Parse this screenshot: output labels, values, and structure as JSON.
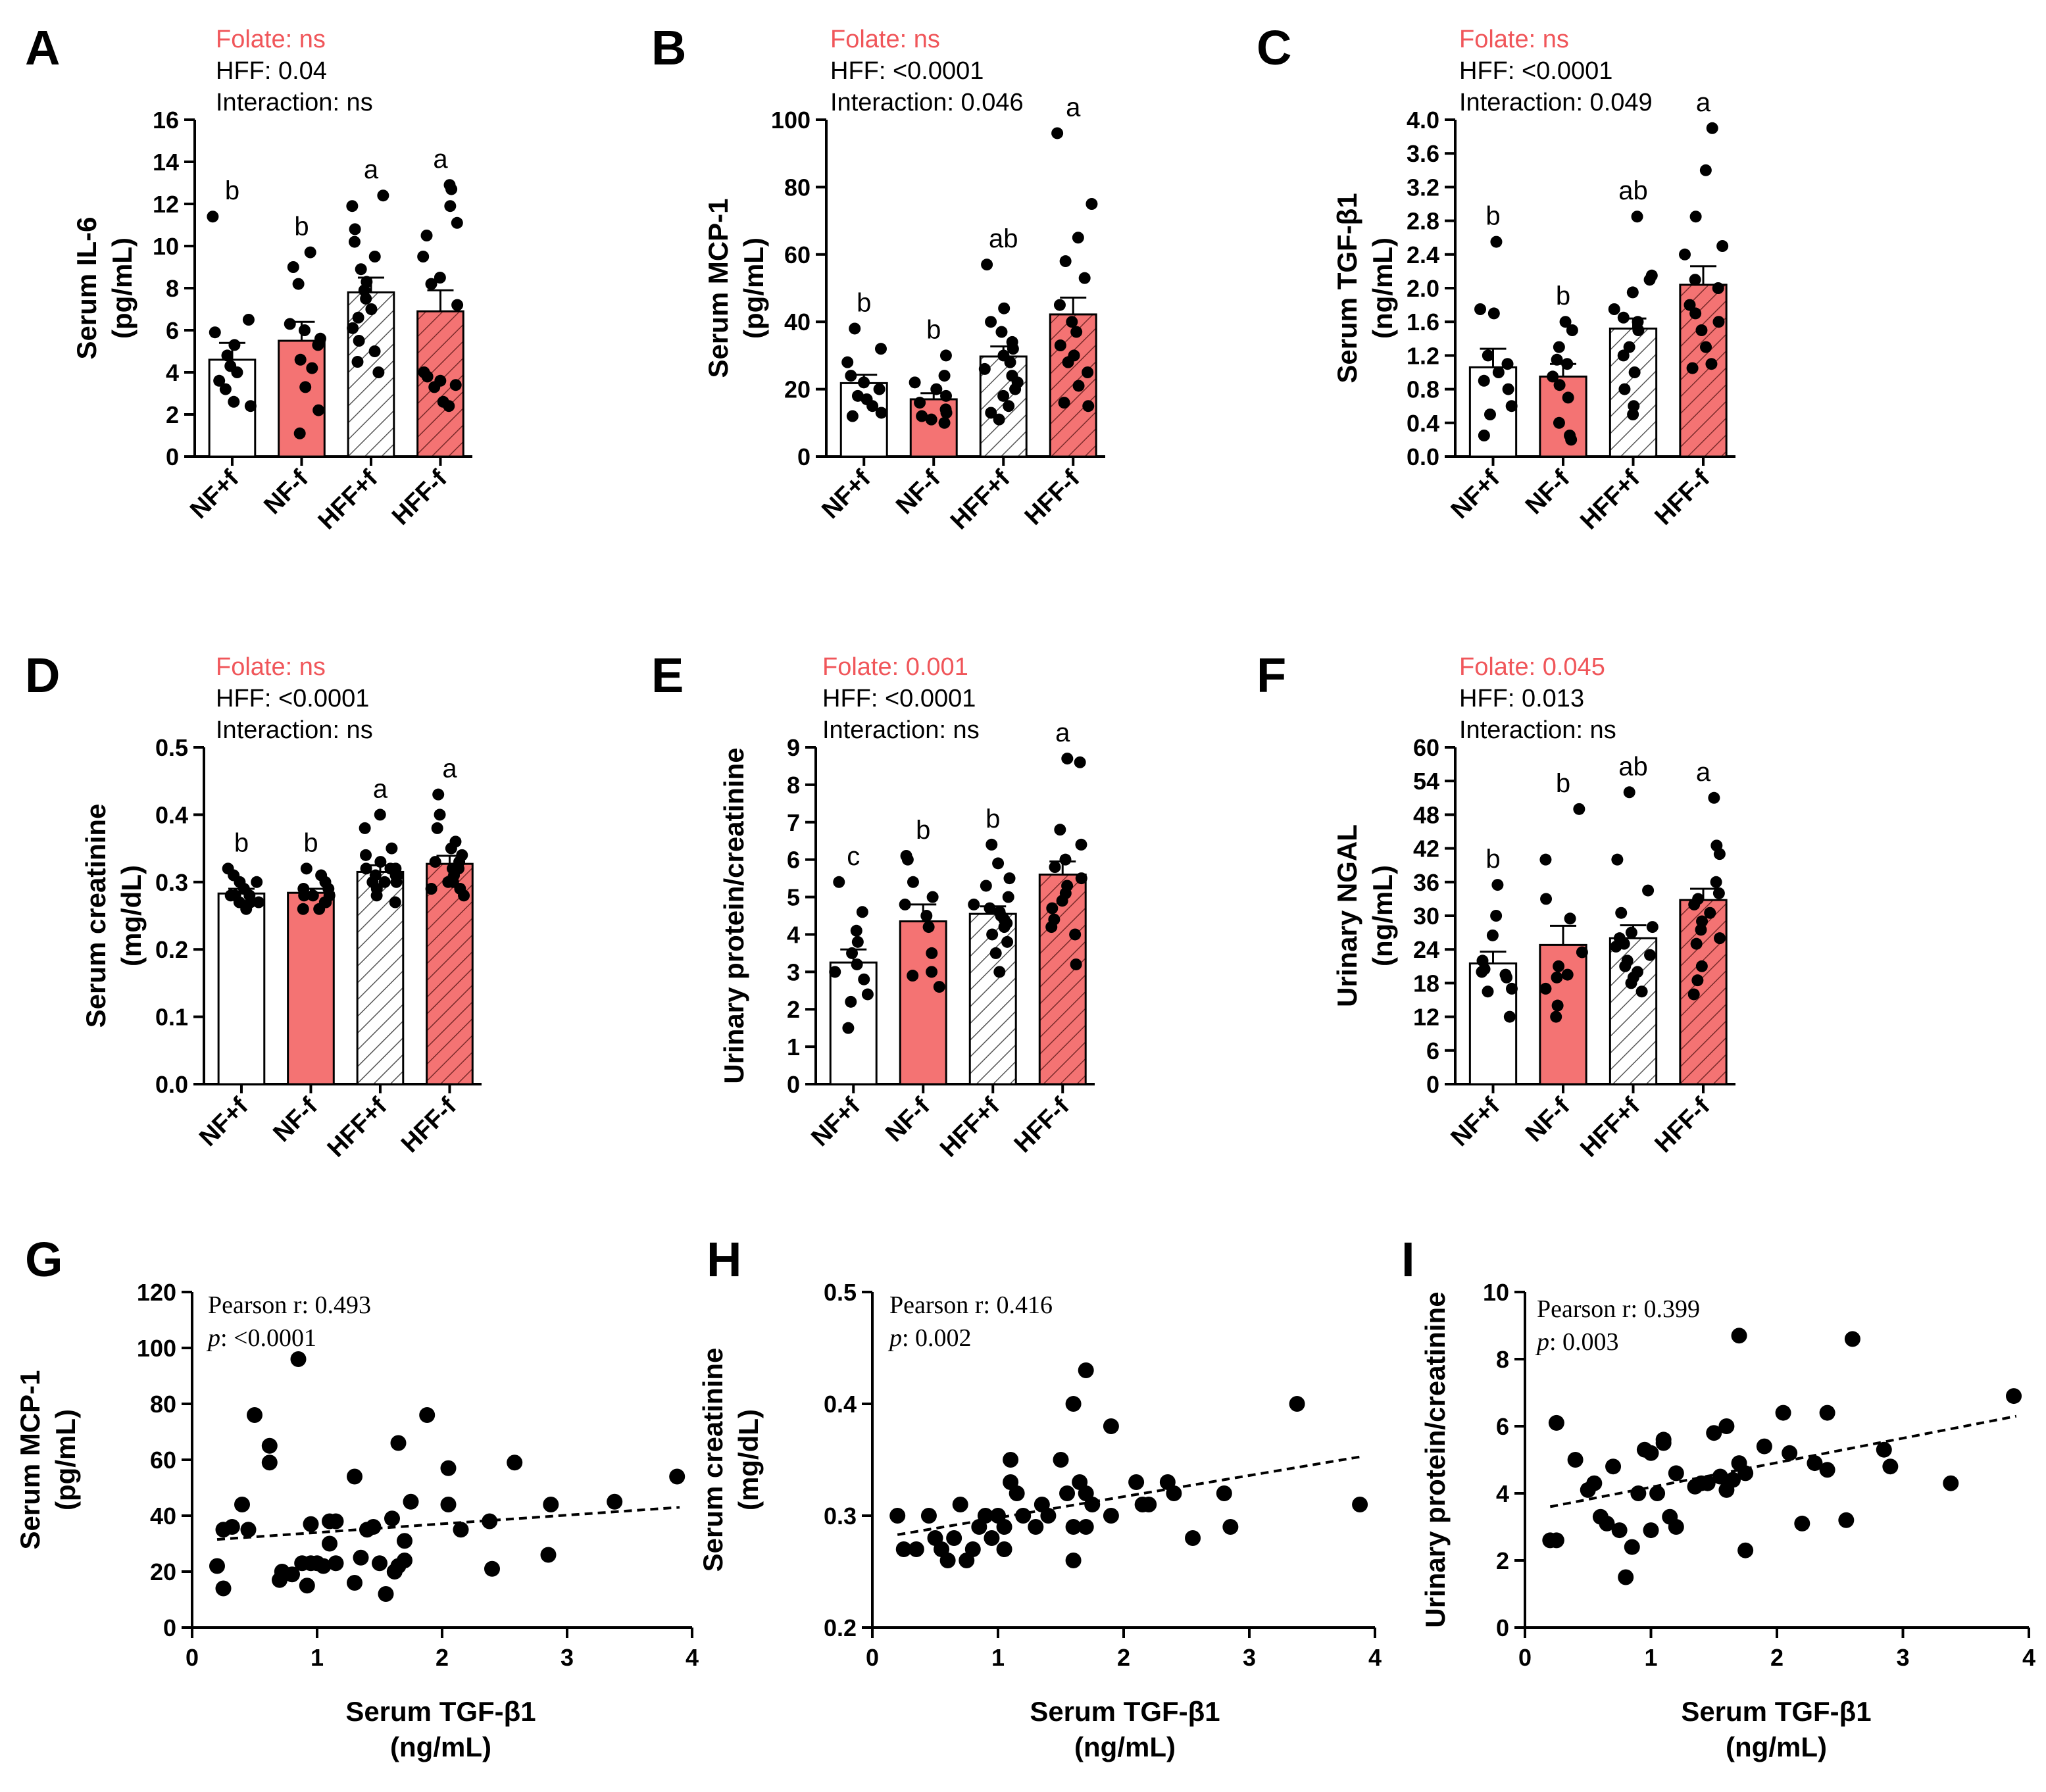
{
  "colors": {
    "red": "#f47373",
    "red_text": "#f0565a",
    "white": "#ffffff",
    "hatch_white": "#ffffff",
    "hatch_red": "#f47373",
    "black": "#000000"
  },
  "chart_data": [
    {
      "id": "A",
      "letter": "A",
      "type": "bar",
      "categories": [
        "NF+f",
        "NF-f",
        "HFF+f",
        "HFF-f"
      ],
      "values": [
        4.6,
        5.5,
        7.8,
        6.9
      ],
      "sem": [
        0.8,
        0.9,
        0.7,
        1.0
      ],
      "sig": [
        "b",
        "b",
        "a",
        "a"
      ],
      "ylabel": [
        "Serum IL-6",
        "(pg/mL)"
      ],
      "ylim": [
        0,
        16
      ],
      "yticks": [
        "0",
        "2",
        "4",
        "6",
        "8",
        "10",
        "12",
        "14",
        "16"
      ],
      "stats": {
        "folate": "Folate: ns",
        "hff": "HFF: 0.04",
        "interaction": "Interaction: ns"
      },
      "points": [
        [
          11.4,
          6.5,
          5.9,
          5.3,
          4.8,
          4.3,
          4.0,
          3.6,
          3.2,
          2.6,
          2.4
        ],
        [
          9.7,
          9.0,
          8.2,
          6.3,
          6.0,
          5.6,
          5.3,
          4.6,
          4.2,
          3.3,
          2.2,
          1.1
        ],
        [
          12.4,
          11.9,
          10.8,
          10.2,
          9.5,
          8.9,
          8.3,
          7.9,
          7.5,
          7.0,
          6.6,
          6.1,
          5.5,
          5.0,
          4.5,
          4.0
        ],
        [
          12.9,
          12.7,
          11.9,
          11.1,
          10.5,
          9.5,
          8.5,
          8.2,
          7.2,
          4.0,
          3.8,
          3.6,
          3.4,
          3.3,
          2.6,
          2.4
        ]
      ]
    },
    {
      "id": "B",
      "letter": "B",
      "type": "bar",
      "categories": [
        "NF+f",
        "NF-f",
        "HFF+f",
        "HFF-f"
      ],
      "values": [
        21.8,
        17.0,
        29.7,
        42.2
      ],
      "sem": [
        2.5,
        1.8,
        3.0,
        5.0
      ],
      "sig": [
        "b",
        "b",
        "ab",
        "a"
      ],
      "ylabel": [
        "Serum MCP-1",
        "(pg/mL)"
      ],
      "ylim": [
        0,
        100
      ],
      "yticks": [
        "0",
        "20",
        "40",
        "60",
        "80",
        "100"
      ],
      "stats": {
        "folate": "Folate: ns",
        "hff": "HFF: <0.0001",
        "interaction": "Interaction: 0.046"
      },
      "points": [
        [
          38,
          32,
          28,
          24,
          22,
          20,
          18,
          17,
          15,
          13,
          12
        ],
        [
          30,
          24,
          22,
          20,
          18,
          16,
          14,
          13,
          12,
          11,
          10
        ],
        [
          57,
          44,
          40,
          37,
          34,
          32,
          30,
          28,
          26,
          24,
          22,
          20,
          18,
          15,
          13,
          11
        ],
        [
          96,
          75,
          65,
          58,
          53,
          45,
          40,
          37,
          33,
          30,
          28,
          25,
          21,
          16,
          15
        ]
      ]
    },
    {
      "id": "C",
      "letter": "C",
      "type": "bar",
      "categories": [
        "NF+f",
        "NF-f",
        "HFF+f",
        "HFF-f"
      ],
      "values": [
        1.06,
        0.95,
        1.52,
        2.04
      ],
      "sem": [
        0.22,
        0.15,
        0.12,
        0.22
      ],
      "sig": [
        "b",
        "b",
        "ab",
        "a"
      ],
      "ylabel": [
        "Serum TGF-β1",
        "(ng/mL)"
      ],
      "ylim": [
        0,
        4
      ],
      "yticks": [
        "0.0",
        "0.4",
        "0.8",
        "1.2",
        "1.6",
        "2.0",
        "2.4",
        "2.8",
        "3.2",
        "3.6",
        "4.0"
      ],
      "stats": {
        "folate": "Folate: ns",
        "hff": "HFF: <0.0001",
        "interaction": "Interaction: 0.049"
      },
      "points": [
        [
          2.55,
          1.75,
          1.7,
          1.2,
          1.1,
          1.0,
          0.9,
          0.8,
          0.6,
          0.5,
          0.25
        ],
        [
          1.6,
          1.5,
          1.3,
          1.15,
          1.1,
          0.95,
          0.85,
          0.7,
          0.4,
          0.25,
          0.2
        ],
        [
          2.85,
          2.15,
          2.1,
          1.95,
          1.75,
          1.65,
          1.6,
          1.5,
          1.3,
          1.2,
          1.0,
          0.8,
          0.6,
          0.5
        ],
        [
          3.9,
          3.4,
          2.85,
          2.5,
          2.4,
          2.1,
          2.0,
          1.8,
          1.7,
          1.6,
          1.5,
          1.3,
          1.1,
          1.05
        ]
      ]
    },
    {
      "id": "D",
      "letter": "D",
      "type": "bar",
      "categories": [
        "NF+f",
        "NF-f",
        "HFF+f",
        "HFF-f"
      ],
      "values": [
        0.283,
        0.284,
        0.315,
        0.327
      ],
      "sem": [
        0.007,
        0.006,
        0.01,
        0.012
      ],
      "sig": [
        "b",
        "b",
        "a",
        "a"
      ],
      "ylabel": [
        "Serum creatinine",
        "(mg/dL)"
      ],
      "ylim": [
        0,
        0.5
      ],
      "yticks": [
        "0.0",
        "0.1",
        "0.2",
        "0.3",
        "0.4",
        "0.5"
      ],
      "stats": {
        "folate": "Folate: ns",
        "hff": "HFF: <0.0001",
        "interaction": "Interaction: ns"
      },
      "points": [
        [
          0.32,
          0.31,
          0.3,
          0.3,
          0.29,
          0.28,
          0.28,
          0.28,
          0.27,
          0.27,
          0.27,
          0.26
        ],
        [
          0.32,
          0.31,
          0.3,
          0.29,
          0.29,
          0.28,
          0.28,
          0.28,
          0.27,
          0.27,
          0.26,
          0.26
        ],
        [
          0.4,
          0.38,
          0.35,
          0.34,
          0.33,
          0.32,
          0.32,
          0.32,
          0.31,
          0.31,
          0.31,
          0.3,
          0.3,
          0.3,
          0.29,
          0.28,
          0.27
        ],
        [
          0.43,
          0.4,
          0.38,
          0.36,
          0.35,
          0.34,
          0.33,
          0.33,
          0.32,
          0.32,
          0.31,
          0.3,
          0.3,
          0.29,
          0.29,
          0.28
        ]
      ]
    },
    {
      "id": "E",
      "letter": "E",
      "type": "bar",
      "categories": [
        "NF+f",
        "NF-f",
        "HFF+f",
        "HFF-f"
      ],
      "values": [
        3.25,
        4.35,
        4.55,
        5.6
      ],
      "sem": [
        0.35,
        0.45,
        0.2,
        0.35
      ],
      "sig": [
        "c",
        "b",
        "b",
        "a"
      ],
      "ylabel": [
        "Urinary protein/creatinine"
      ],
      "ylim": [
        0,
        9
      ],
      "yticks": [
        "0",
        "1",
        "2",
        "3",
        "4",
        "5",
        "6",
        "7",
        "8",
        "9"
      ],
      "stats": {
        "folate": "Folate: 0.001",
        "hff": "HFF: <0.0001",
        "interaction": "Interaction: ns"
      },
      "points": [
        [
          5.4,
          4.6,
          4.1,
          3.8,
          3.5,
          3.2,
          3.0,
          2.8,
          2.4,
          2.2,
          1.5
        ],
        [
          6.1,
          6.0,
          5.4,
          5.0,
          4.8,
          4.5,
          4.2,
          3.5,
          3.0,
          2.9,
          2.6
        ],
        [
          6.4,
          5.9,
          5.5,
          5.3,
          5.0,
          4.8,
          4.7,
          4.6,
          4.5,
          4.4,
          4.3,
          4.2,
          4.0,
          3.8,
          3.5,
          3.0
        ],
        [
          8.7,
          8.6,
          6.8,
          6.4,
          6.0,
          5.8,
          5.5,
          5.3,
          5.1,
          4.9,
          4.7,
          4.4,
          4.2,
          4.0,
          3.2
        ]
      ]
    },
    {
      "id": "F",
      "letter": "F",
      "type": "bar",
      "categories": [
        "NF+f",
        "NF-f",
        "HFF+f",
        "HFF-f"
      ],
      "values": [
        21.5,
        24.8,
        26.0,
        32.8
      ],
      "sem": [
        2.1,
        3.4,
        2.3,
        2.0
      ],
      "sig": [
        "b",
        "b",
        "ab",
        "a"
      ],
      "ylabel": [
        "Urinary NGAL",
        "(ng/mL)"
      ],
      "ylim": [
        0,
        60
      ],
      "yticks": [
        "0",
        "6",
        "12",
        "18",
        "24",
        "30",
        "36",
        "42",
        "48",
        "54",
        "60"
      ],
      "stats": {
        "folate": "Folate: 0.045",
        "hff": "HFF: 0.013",
        "interaction": "Interaction: ns"
      },
      "points": [
        [
          35.5,
          30.0,
          26.5,
          22.0,
          20.5,
          20.0,
          19.5,
          19.0,
          17.0,
          16.5,
          12.0
        ],
        [
          49.0,
          40.0,
          33.0,
          29.5,
          23.5,
          21.0,
          19.5,
          19.0,
          17.0,
          14.0,
          12.0
        ],
        [
          52.0,
          40.0,
          34.5,
          30.5,
          28.0,
          27.0,
          26.0,
          25.0,
          24.5,
          23.0,
          22.0,
          21.0,
          20.0,
          19.0,
          18.0,
          16.5
        ],
        [
          51.0,
          42.5,
          41.0,
          36.0,
          34.0,
          33.0,
          32.0,
          30.5,
          29.0,
          27.5,
          26.0,
          25.0,
          21.0,
          18.5,
          16.0
        ]
      ]
    },
    {
      "id": "G",
      "letter": "G",
      "type": "scatter",
      "xlabel": [
        "Serum TGF-β1",
        "(ng/mL)"
      ],
      "ylabel": [
        "Serum MCP-1",
        "(pg/mL)"
      ],
      "xlim": [
        0,
        4
      ],
      "ylim": [
        0,
        120
      ],
      "xticks": [
        "0",
        "1",
        "2",
        "3",
        "4"
      ],
      "yticks": [
        "0",
        "20",
        "40",
        "60",
        "80",
        "100",
        "120"
      ],
      "annotation": {
        "pearson": "Pearson r: 0.493",
        "p_label": "p",
        "p_value": ": <0.0001"
      },
      "trend": [
        [
          0.2,
          31.5
        ],
        [
          3.9,
          43.0
        ]
      ],
      "x": [
        0.2,
        0.25,
        0.25,
        0.32,
        0.4,
        0.45,
        0.5,
        0.62,
        0.62,
        0.7,
        0.72,
        0.8,
        0.85,
        0.88,
        0.92,
        0.95,
        0.95,
        1.0,
        1.05,
        1.1,
        1.1,
        1.15,
        1.15,
        1.3,
        1.3,
        1.35,
        1.4,
        1.45,
        1.5,
        1.55,
        1.6,
        1.62,
        1.65,
        1.65,
        1.7,
        1.7,
        1.75,
        1.88,
        2.05,
        2.05,
        2.15,
        2.38,
        2.4,
        2.58,
        2.85,
        2.87,
        3.38,
        3.88
      ],
      "y": [
        22,
        35,
        14,
        36,
        44,
        35,
        76,
        59,
        65,
        17,
        20,
        19,
        96,
        23,
        15,
        23,
        37,
        23,
        22,
        30,
        38,
        38,
        23,
        16,
        54,
        25,
        35,
        36,
        23,
        12,
        39,
        20,
        22,
        66,
        31,
        24,
        45,
        76,
        57,
        44,
        35,
        38,
        21,
        59,
        26,
        44,
        45,
        54
      ]
    },
    {
      "id": "H",
      "letter": "H",
      "type": "scatter",
      "xlabel": [
        "Serum TGF-β1",
        "(ng/mL)"
      ],
      "ylabel": [
        "Serum creatinine",
        "(mg/dL)"
      ],
      "xlim": [
        0,
        4
      ],
      "ylim": [
        0.2,
        0.5
      ],
      "xticks": [
        "0",
        "1",
        "2",
        "3",
        "4"
      ],
      "yticks": [
        "0.2",
        "0.3",
        "0.4",
        "0.5"
      ],
      "annotation": {
        "pearson": "Pearson r: 0.416",
        "p_label": "p",
        "p_value": ": 0.002"
      },
      "trend": [
        [
          0.2,
          0.283
        ],
        [
          3.9,
          0.353
        ]
      ],
      "x": [
        0.2,
        0.25,
        0.35,
        0.45,
        0.5,
        0.55,
        0.6,
        0.65,
        0.7,
        0.75,
        0.8,
        0.85,
        0.9,
        0.95,
        1.0,
        1.05,
        1.05,
        1.1,
        1.1,
        1.15,
        1.2,
        1.3,
        1.35,
        1.4,
        1.5,
        1.55,
        1.6,
        1.6,
        1.6,
        1.65,
        1.7,
        1.7,
        1.7,
        1.75,
        1.9,
        1.9,
        2.1,
        2.15,
        2.2,
        2.35,
        2.4,
        2.55,
        2.8,
        2.85,
        3.38,
        3.88
      ],
      "y": [
        0.3,
        0.27,
        0.27,
        0.3,
        0.28,
        0.27,
        0.26,
        0.28,
        0.31,
        0.26,
        0.27,
        0.29,
        0.3,
        0.28,
        0.3,
        0.29,
        0.27,
        0.33,
        0.35,
        0.32,
        0.3,
        0.29,
        0.31,
        0.3,
        0.35,
        0.32,
        0.4,
        0.29,
        0.26,
        0.33,
        0.43,
        0.32,
        0.29,
        0.31,
        0.38,
        0.3,
        0.33,
        0.31,
        0.31,
        0.33,
        0.32,
        0.28,
        0.32,
        0.29,
        0.4,
        0.31
      ]
    },
    {
      "id": "I",
      "letter": "I",
      "type": "scatter",
      "xlabel": [
        "Serum TGF-β1",
        "(ng/mL)"
      ],
      "ylabel": [
        "Urinary protein/creatinine"
      ],
      "xlim": [
        0,
        4
      ],
      "ylim": [
        0,
        10
      ],
      "xticks": [
        "0",
        "1",
        "2",
        "3",
        "4"
      ],
      "yticks": [
        "0",
        "2",
        "4",
        "6",
        "8",
        "10"
      ],
      "annotation": {
        "pearson": "Pearson r: 0.399",
        "p_label": "p",
        "p_value": ": 0.003"
      },
      "trend": [
        [
          0.2,
          3.6
        ],
        [
          3.9,
          6.3
        ]
      ],
      "x": [
        0.2,
        0.25,
        0.25,
        0.4,
        0.5,
        0.55,
        0.6,
        0.65,
        0.7,
        0.75,
        0.8,
        0.85,
        0.9,
        0.95,
        1.0,
        1.0,
        1.05,
        1.1,
        1.1,
        1.15,
        1.2,
        1.2,
        1.35,
        1.4,
        1.45,
        1.5,
        1.55,
        1.6,
        1.6,
        1.65,
        1.7,
        1.7,
        1.75,
        1.75,
        1.9,
        2.05,
        2.1,
        2.2,
        2.3,
        2.4,
        2.4,
        2.55,
        2.6,
        2.85,
        2.9,
        3.38,
        3.88
      ],
      "y": [
        2.6,
        6.1,
        2.6,
        5.0,
        4.1,
        4.3,
        3.3,
        3.1,
        4.8,
        2.9,
        1.5,
        2.4,
        4.0,
        5.3,
        2.9,
        5.2,
        4.0,
        5.5,
        5.6,
        3.3,
        4.6,
        3.0,
        4.2,
        4.3,
        4.3,
        5.8,
        4.5,
        6.0,
        4.1,
        4.4,
        4.9,
        8.7,
        4.6,
        2.3,
        5.4,
        6.4,
        5.2,
        3.1,
        4.9,
        4.7,
        6.4,
        3.2,
        8.6,
        5.3,
        4.8,
        4.3,
        6.9
      ]
    }
  ]
}
